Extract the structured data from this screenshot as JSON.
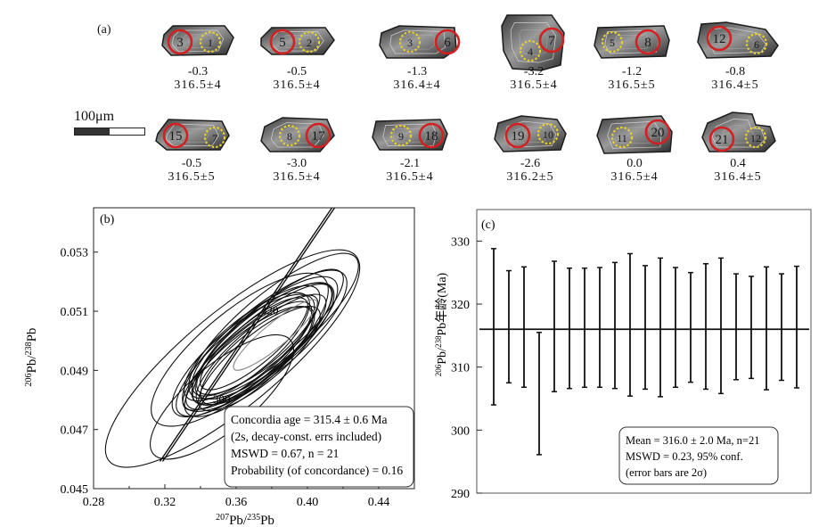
{
  "panel_a": {
    "letter": "(a)",
    "scale_label": "100μm",
    "grains": [
      {
        "spots": [
          "3",
          "1"
        ],
        "value": "-0.3",
        "age": "316.5±4"
      },
      {
        "spots": [
          "5",
          "2"
        ],
        "value": "-0.5",
        "age": "316.5±4"
      },
      {
        "spots": [
          "3",
          "6"
        ],
        "value": "-1.3",
        "age": "316.4±4"
      },
      {
        "spots": [
          "4",
          "7"
        ],
        "value": "-3.2",
        "age": "316.5±4"
      },
      {
        "spots": [
          "5",
          "8"
        ],
        "value": "-1.2",
        "age": "316.5±5"
      },
      {
        "spots": [
          "12",
          "6"
        ],
        "value": "-0.8",
        "age": "316.4±5"
      },
      {
        "spots": [
          "15",
          "7"
        ],
        "value": "-0.5",
        "age": "316.5±5"
      },
      {
        "spots": [
          "8",
          "17"
        ],
        "value": "-3.0",
        "age": "316.5±4"
      },
      {
        "spots": [
          "9",
          "18"
        ],
        "value": "-2.1",
        "age": "316.5±4"
      },
      {
        "spots": [
          "19",
          "10"
        ],
        "value": "-2.6",
        "age": "316.2±5"
      },
      {
        "spots": [
          "11",
          "20"
        ],
        "value": "0.0",
        "age": "316.5±4"
      },
      {
        "spots": [
          "21",
          "12"
        ],
        "value": "0.4",
        "age": "316.4±5"
      }
    ]
  },
  "chart_data": [
    {
      "type": "scatter",
      "panel": "(b)",
      "xlabel": "207Pb/235Pb",
      "ylabel": "206Pb/238Pb",
      "xlim": [
        0.28,
        0.46
      ],
      "ylim": [
        0.045,
        0.0545
      ],
      "xticks": [
        "0.28",
        "0.32",
        "0.36",
        "0.40",
        "0.44"
      ],
      "yticks": [
        "0.045",
        "0.047",
        "0.049",
        "0.051",
        "0.053"
      ],
      "concordia_labels": [
        {
          "age": "300",
          "x": 0.347,
          "y": 0.0479
        },
        {
          "age": "320",
          "x": 0.374,
          "y": 0.0509
        }
      ],
      "ellipses": [
        {
          "cx": 0.37,
          "cy": 0.0497,
          "rx": 0.055,
          "ry": 0.001
        },
        {
          "cx": 0.373,
          "cy": 0.0498,
          "rx": 0.052,
          "ry": 0.0009
        },
        {
          "cx": 0.368,
          "cy": 0.0496,
          "rx": 0.048,
          "ry": 0.0008
        },
        {
          "cx": 0.375,
          "cy": 0.0499,
          "rx": 0.05,
          "ry": 0.001
        },
        {
          "cx": 0.371,
          "cy": 0.05,
          "rx": 0.045,
          "ry": 0.0009
        },
        {
          "cx": 0.369,
          "cy": 0.0496,
          "rx": 0.042,
          "ry": 0.0008
        },
        {
          "cx": 0.374,
          "cy": 0.0497,
          "rx": 0.046,
          "ry": 0.0008
        },
        {
          "cx": 0.372,
          "cy": 0.0495,
          "rx": 0.04,
          "ry": 0.0008
        },
        {
          "cx": 0.366,
          "cy": 0.0498,
          "rx": 0.044,
          "ry": 0.0009
        },
        {
          "cx": 0.377,
          "cy": 0.0501,
          "rx": 0.05,
          "ry": 0.001
        },
        {
          "cx": 0.37,
          "cy": 0.0499,
          "rx": 0.038,
          "ry": 0.0007
        },
        {
          "cx": 0.373,
          "cy": 0.0494,
          "rx": 0.043,
          "ry": 0.0008
        },
        {
          "cx": 0.379,
          "cy": 0.0503,
          "rx": 0.052,
          "ry": 0.0009
        },
        {
          "cx": 0.367,
          "cy": 0.0493,
          "rx": 0.045,
          "ry": 0.0009
        },
        {
          "cx": 0.376,
          "cy": 0.05,
          "rx": 0.058,
          "ry": 0.0011
        },
        {
          "cx": 0.364,
          "cy": 0.0495,
          "rx": 0.05,
          "ry": 0.001
        },
        {
          "cx": 0.381,
          "cy": 0.0505,
          "rx": 0.06,
          "ry": 0.0011
        },
        {
          "cx": 0.362,
          "cy": 0.0497,
          "rx": 0.062,
          "ry": 0.0013
        },
        {
          "cx": 0.382,
          "cy": 0.0502,
          "rx": 0.03,
          "ry": 0.0004
        },
        {
          "cx": 0.358,
          "cy": 0.0494,
          "rx": 0.09,
          "ry": 0.0016
        },
        {
          "cx": 0.352,
          "cy": 0.0481,
          "rx": 0.05,
          "ry": 0.0011
        }
      ],
      "annotation": [
        "Concordia age = 315.4 ± 0.6 Ma",
        "(2s, decay-const. errs included)",
        "MSWD = 0.67, n = 21",
        "Probability (of concordance) = 0.16"
      ]
    },
    {
      "type": "errorbar",
      "panel": "(c)",
      "ylabel": "206Pb/238Pb年龄(Ma)",
      "ylim": [
        290,
        335
      ],
      "yticks": [
        "290",
        "300",
        "310",
        "320",
        "330"
      ],
      "mean": 316.0,
      "bars": [
        {
          "low": 304.0,
          "high": 328.8
        },
        {
          "low": 307.5,
          "high": 325.3
        },
        {
          "low": 306.8,
          "high": 325.9
        },
        {
          "low": 296.1,
          "high": 315.5
        },
        {
          "low": 306.1,
          "high": 326.8
        },
        {
          "low": 306.6,
          "high": 325.7
        },
        {
          "low": 306.8,
          "high": 325.7
        },
        {
          "low": 306.8,
          "high": 325.8
        },
        {
          "low": 306.6,
          "high": 326.6
        },
        {
          "low": 305.4,
          "high": 328.0
        },
        {
          "low": 306.5,
          "high": 326.1
        },
        {
          "low": 305.3,
          "high": 327.3
        },
        {
          "low": 306.8,
          "high": 325.8
        },
        {
          "low": 307.6,
          "high": 325.0
        },
        {
          "low": 306.5,
          "high": 326.4
        },
        {
          "low": 305.8,
          "high": 327.3
        },
        {
          "low": 308.0,
          "high": 324.8
        },
        {
          "low": 308.2,
          "high": 324.4
        },
        {
          "low": 306.4,
          "high": 325.9
        },
        {
          "low": 307.9,
          "high": 324.8
        },
        {
          "low": 306.7,
          "high": 326.0
        }
      ],
      "annotation": [
        "Mean = 316.0 ± 2.0 Ma, n=21",
        "MSWD = 0.23, 95% conf.",
        "(error bars are 2σ)"
      ]
    }
  ]
}
